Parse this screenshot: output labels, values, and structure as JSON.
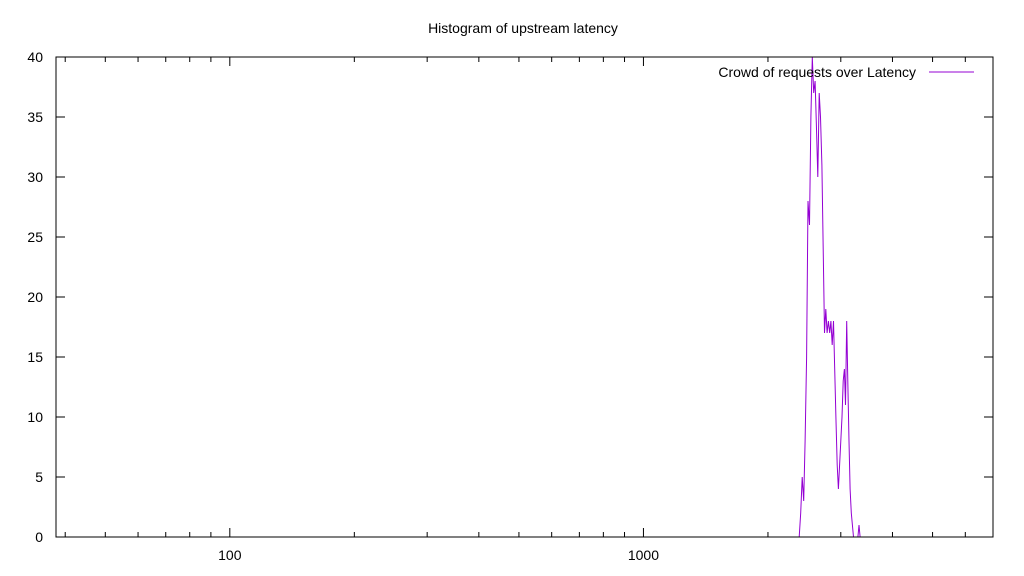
{
  "chart_data": {
    "type": "line",
    "title": "Histogram of upstream latency",
    "xlabel": "",
    "ylabel": "",
    "x_scale": "log",
    "xlim": [
      38,
      7000
    ],
    "ylim": [
      0,
      40
    ],
    "grid": false,
    "legend_position": "top-right",
    "x_ticks": [
      100,
      1000
    ],
    "x_tick_labels": [
      "100",
      "1000"
    ],
    "y_ticks": [
      0,
      5,
      10,
      15,
      20,
      25,
      30,
      35,
      40
    ],
    "y_tick_labels": [
      "0",
      "5",
      "10",
      "15",
      "20",
      "25",
      "30",
      "35",
      "40"
    ],
    "series": [
      {
        "name": "Crowd of requests over Latency",
        "color": "#9400d3",
        "x": [
          2380,
          2400,
          2420,
          2440,
          2460,
          2480,
          2500,
          2520,
          2540,
          2560,
          2580,
          2600,
          2620,
          2640,
          2660,
          2680,
          2700,
          2720,
          2740,
          2760,
          2780,
          2800,
          2820,
          2840,
          2860,
          2880,
          2900,
          2920,
          2940,
          2960,
          2980,
          3000,
          3020,
          3040,
          3060,
          3080,
          3100,
          3120,
          3140,
          3160,
          3180,
          3200,
          3220,
          3240,
          3260,
          3280,
          3300,
          3320,
          3340,
          3360,
          3380,
          3400,
          3420,
          3440,
          3460,
          3480,
          3500,
          3520,
          3540,
          3560,
          3580,
          3600,
          3620
        ],
        "y": [
          0,
          2,
          5,
          3,
          8,
          15,
          28,
          26,
          35,
          40,
          37,
          38,
          34,
          30,
          37,
          35,
          31,
          24,
          17,
          19,
          17,
          18,
          17,
          18,
          16,
          18,
          14,
          10,
          6,
          4,
          6,
          8,
          10,
          13,
          14,
          11,
          18,
          13,
          8,
          4,
          2,
          1,
          0,
          0,
          0,
          0,
          0,
          1,
          0,
          0,
          0,
          0,
          0,
          0,
          0,
          0,
          0,
          0,
          0,
          0,
          0,
          0,
          0
        ]
      }
    ]
  }
}
